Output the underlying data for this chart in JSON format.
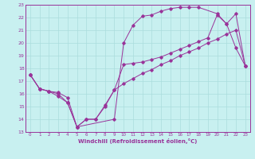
{
  "title": "",
  "xlabel": "Windchill (Refroidissement éolien,°C)",
  "bg_color": "#c8f0f0",
  "line_color": "#993399",
  "grid_color": "#aadddd",
  "spine_color": "#993399",
  "xlim": [
    -0.5,
    23.5
  ],
  "ylim": [
    13,
    23
  ],
  "yticks": [
    13,
    14,
    15,
    16,
    17,
    18,
    19,
    20,
    21,
    22,
    23
  ],
  "xticks": [
    0,
    1,
    2,
    3,
    4,
    5,
    6,
    7,
    8,
    9,
    10,
    11,
    12,
    13,
    14,
    15,
    16,
    17,
    18,
    19,
    20,
    21,
    22,
    23
  ],
  "curve1_x": [
    0,
    1,
    2,
    3,
    4,
    5,
    6,
    7,
    8,
    9,
    10,
    11,
    12,
    13,
    14,
    15,
    16,
    17,
    18,
    19,
    20,
    21,
    22,
    23
  ],
  "curve1_y": [
    17.5,
    16.4,
    16.2,
    16.1,
    15.7,
    13.4,
    14.0,
    14.0,
    15.1,
    16.3,
    16.8,
    17.2,
    17.6,
    17.9,
    18.3,
    18.6,
    19.0,
    19.3,
    19.6,
    20.0,
    20.3,
    20.7,
    21.0,
    18.2
  ],
  "curve2_x": [
    0,
    1,
    2,
    3,
    4,
    5,
    9,
    10,
    11,
    12,
    13,
    14,
    15,
    16,
    17,
    18,
    20,
    21,
    22,
    23
  ],
  "curve2_y": [
    17.5,
    16.4,
    16.2,
    15.8,
    15.3,
    13.4,
    14.0,
    20.0,
    21.4,
    22.1,
    22.2,
    22.5,
    22.7,
    22.8,
    22.8,
    22.8,
    22.3,
    21.5,
    19.6,
    18.2
  ],
  "curve3_x": [
    0,
    1,
    2,
    3,
    4,
    5,
    6,
    7,
    8,
    9,
    10,
    11,
    12,
    13,
    14,
    15,
    16,
    17,
    18,
    19,
    20,
    21,
    22,
    23
  ],
  "curve3_y": [
    17.5,
    16.4,
    16.2,
    16.0,
    15.3,
    13.4,
    14.0,
    14.0,
    15.0,
    16.3,
    18.3,
    18.4,
    18.5,
    18.7,
    18.9,
    19.2,
    19.5,
    19.8,
    20.1,
    20.4,
    22.2,
    21.5,
    22.3,
    18.2
  ],
  "marker": "D",
  "markersize": 1.8,
  "linewidth": 0.7,
  "tick_fontsize": 4.5,
  "xlabel_fontsize": 5.0
}
